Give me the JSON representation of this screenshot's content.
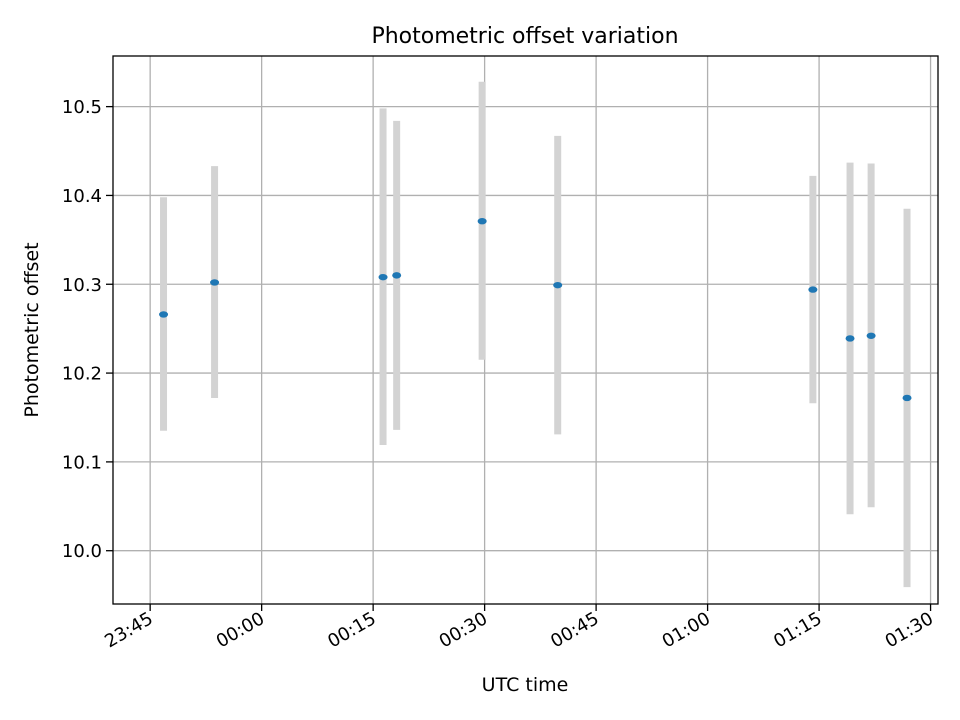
{
  "chart_data": {
    "type": "scatter",
    "title": "Photometric offset variation",
    "xlabel": "UTC time",
    "ylabel": "Photometric offset",
    "grid": true,
    "xlim": [
      "23:40",
      "01:31"
    ],
    "ylim": [
      9.94,
      10.557
    ],
    "x_ticks": [
      "23:45",
      "00:00",
      "00:15",
      "00:30",
      "00:45",
      "01:00",
      "01:15",
      "01:30"
    ],
    "y_ticks": [
      "10.0",
      "10.1",
      "10.2",
      "10.3",
      "10.4",
      "10.5"
    ],
    "colors": {
      "points": "#1f77b4",
      "errorbars": "#d3d3d3",
      "grid": "#b0b0b0"
    },
    "points": [
      {
        "x": "23:46:48",
        "y": 10.266,
        "ylow": 10.135,
        "yhigh": 10.398
      },
      {
        "x": "23:53:40",
        "y": 10.302,
        "ylow": 10.172,
        "yhigh": 10.433
      },
      {
        "x": "00:16:20",
        "y": 10.308,
        "ylow": 10.119,
        "yhigh": 10.498
      },
      {
        "x": "00:18:10",
        "y": 10.31,
        "ylow": 10.136,
        "yhigh": 10.484
      },
      {
        "x": "00:29:40",
        "y": 10.371,
        "ylow": 10.215,
        "yhigh": 10.528
      },
      {
        "x": "00:39:50",
        "y": 10.299,
        "ylow": 10.131,
        "yhigh": 10.467
      },
      {
        "x": "01:14:10",
        "y": 10.294,
        "ylow": 10.166,
        "yhigh": 10.422
      },
      {
        "x": "01:19:10",
        "y": 10.239,
        "ylow": 10.041,
        "yhigh": 10.437
      },
      {
        "x": "01:22:00",
        "y": 10.242,
        "ylow": 10.049,
        "yhigh": 10.436
      },
      {
        "x": "01:26:50",
        "y": 10.172,
        "ylow": 9.959,
        "yhigh": 10.385
      }
    ]
  }
}
